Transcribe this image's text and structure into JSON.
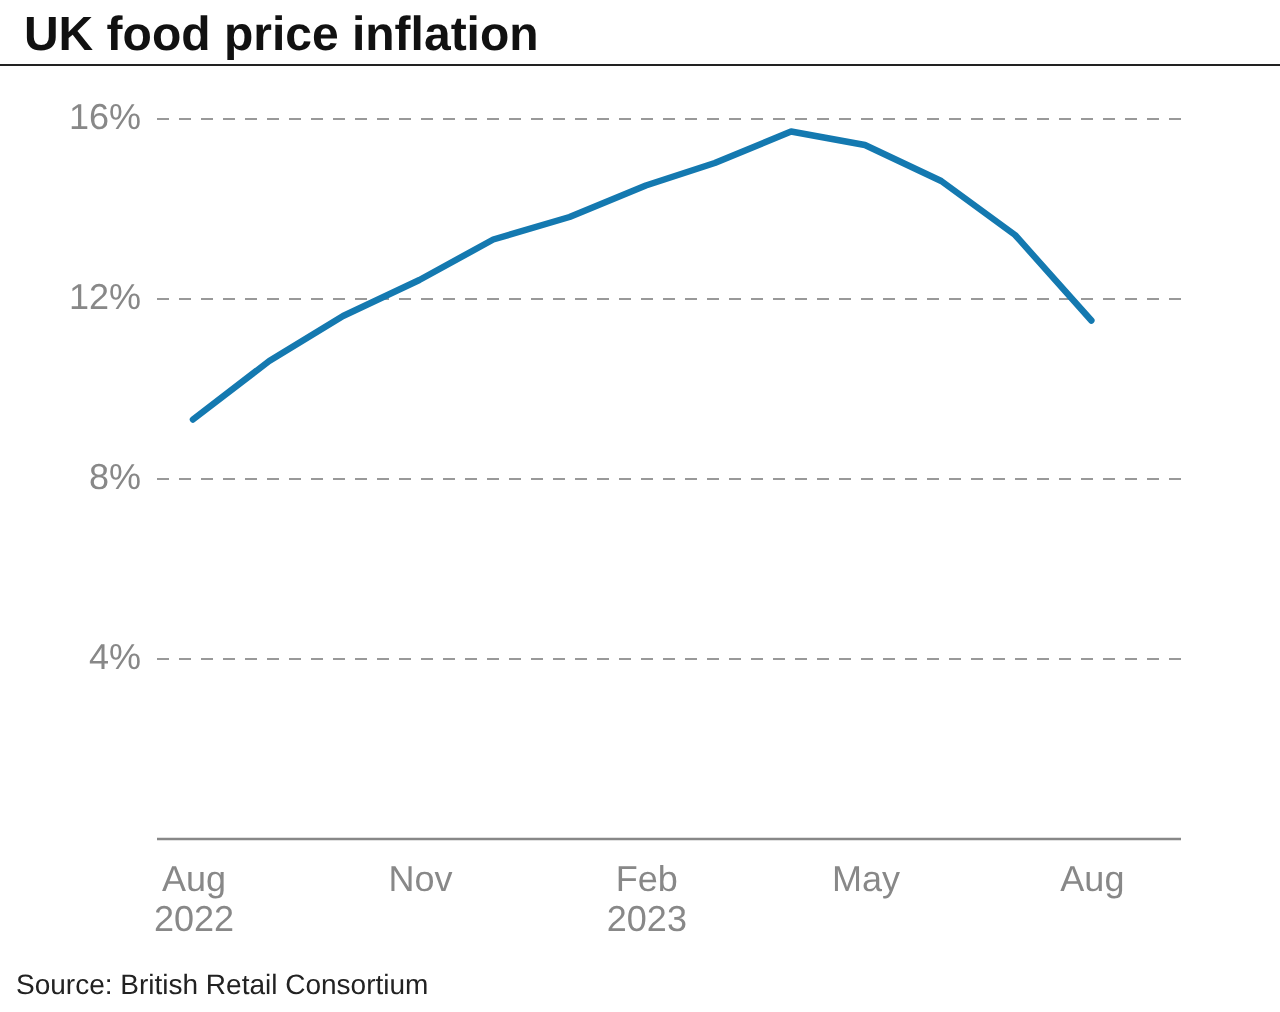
{
  "chart_data": {
    "type": "line",
    "title": "UK food price inflation",
    "x": [
      "2022-08",
      "2022-09",
      "2022-10",
      "2022-11",
      "2022-12",
      "2023-01",
      "2023-02",
      "2023-03",
      "2023-04",
      "2023-05",
      "2023-06",
      "2023-07",
      "2023-08"
    ],
    "series": [
      {
        "color": "#1479b0",
        "values": [
          9.3,
          10.6,
          11.6,
          12.4,
          13.3,
          13.8,
          14.5,
          15.0,
          15.7,
          15.4,
          14.6,
          13.4,
          11.5
        ]
      }
    ],
    "xlim": [
      "2022-07-17",
      "2023-09-06"
    ],
    "xticks": [
      {
        "value": "2022-08",
        "label": "Aug\n2022"
      },
      {
        "value": "2022-11",
        "label": "Nov"
      },
      {
        "value": "2023-02",
        "label": "Feb\n2023"
      },
      {
        "value": "2023-05",
        "label": "May"
      },
      {
        "value": "2023-08",
        "label": "Aug"
      }
    ],
    "ylim": [
      0,
      16
    ],
    "yticks": [
      {
        "value": 4,
        "label": "4%"
      },
      {
        "value": 8,
        "label": "8%"
      },
      {
        "value": 12,
        "label": "12%"
      },
      {
        "value": 16,
        "label": "16%"
      }
    ],
    "grid": "y",
    "legend": false,
    "marker": "none",
    "line_style": "solid",
    "annotations": [
      "Source: British Retail Consortium"
    ]
  }
}
